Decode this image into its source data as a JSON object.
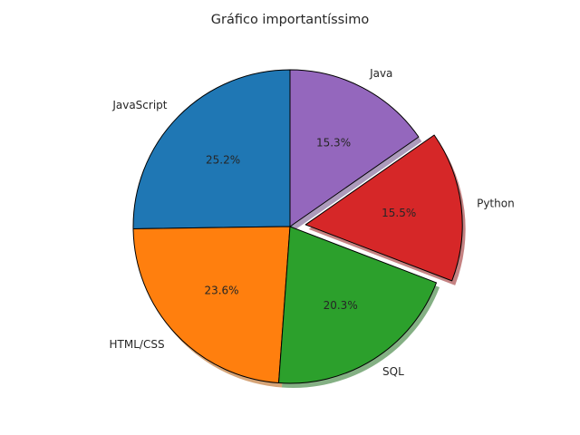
{
  "chart_data": {
    "type": "pie",
    "title": "Gráfico importantíssimo",
    "categories": [
      "JavaScript",
      "HTML/CSS",
      "SQL",
      "Python",
      "Java"
    ],
    "values": [
      25.2,
      23.6,
      20.3,
      15.5,
      15.3
    ],
    "value_labels": [
      "25.2%",
      "23.6%",
      "20.3%",
      "15.5%",
      "15.3%"
    ],
    "colors": [
      "#1f77b4",
      "#ff7f0e",
      "#2ca02c",
      "#d62728",
      "#9467bd"
    ],
    "explode": [
      0,
      0,
      0,
      0.1,
      0
    ],
    "start_angle": 90,
    "direction": "counterclockwise",
    "shadow": true,
    "legend": "none"
  }
}
